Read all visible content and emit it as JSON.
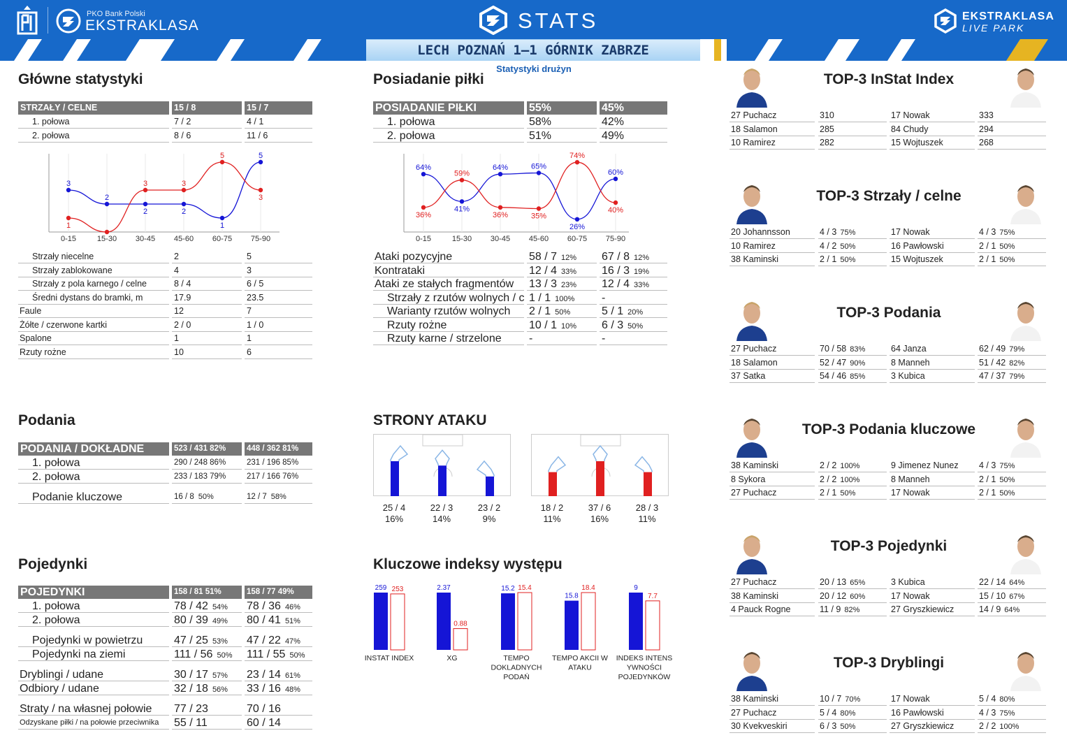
{
  "header": {
    "pko_small": "PKO Bank Polski",
    "ekstraklasa": "EKSTRAKLASA",
    "stats": "STATS",
    "live1": "EKSTRAKLASA",
    "live2": "LIVE PARK"
  },
  "match": "LECH POZNAŃ 1–1 GÓRNIK ZABRZE",
  "subtitle": "Statystyki drużyn",
  "colors": {
    "home": "#1515d6",
    "away": "#e02020",
    "header": "#1769c9",
    "table_header": "#777777"
  },
  "main_stats": {
    "title": "Główne statystyki",
    "header": [
      "STRZAŁY / CELNE",
      "15 / 8",
      "15 / 7"
    ],
    "rows": [
      [
        "1. połowa",
        "7 / 2",
        "4 / 1"
      ],
      [
        "2. połowa",
        "8 / 6",
        "11 / 6"
      ]
    ],
    "rows2": [
      [
        "Strzały niecelne",
        "2",
        "5"
      ],
      [
        "Strzały zablokowane",
        "4",
        "3"
      ],
      [
        "Strzały z pola karnego / celne",
        "8 / 4",
        "6 / 5"
      ],
      [
        "Średni dystans do bramki, m",
        "17.9",
        "23.5"
      ],
      [
        "Faule",
        "12",
        "7"
      ],
      [
        "Żółte / czerwone kartki",
        "2 / 0",
        "1 / 0"
      ],
      [
        "Spalone",
        "1",
        "1"
      ],
      [
        "Rzuty rożne",
        "10",
        "6"
      ]
    ]
  },
  "possession": {
    "title": "Posiadanie piłki",
    "header": [
      "POSIADANIE PIŁKI",
      "55%",
      "45%"
    ],
    "rows": [
      [
        "1. połowa",
        "58%",
        "42%"
      ],
      [
        "2. połowa",
        "51%",
        "49%"
      ]
    ],
    "rows2": [
      [
        "Ataki pozycyjne",
        "58 / 7",
        "12%",
        "67 / 8",
        "12%"
      ],
      [
        "Kontrataki",
        "12 / 4",
        "33%",
        "16 / 3",
        "19%"
      ],
      [
        "Ataki ze stałych fragmentów",
        "13 / 3",
        "23%",
        "12 / 4",
        "33%"
      ],
      [
        "Strzały z rzutów wolnych / celne",
        "1 / 1",
        "100%",
        "-",
        ""
      ],
      [
        "Warianty rzutów wolnych",
        "2 / 1",
        "50%",
        "5 / 1",
        "20%"
      ],
      [
        "Rzuty rożne",
        "10 / 1",
        "10%",
        "6 / 3",
        "50%"
      ],
      [
        "Rzuty karne / strzelone",
        "-",
        "",
        "-",
        ""
      ]
    ]
  },
  "chart_data": [
    {
      "type": "line",
      "categories": [
        "0-15",
        "15-30",
        "30-45",
        "45-60",
        "60-75",
        "75-90"
      ],
      "series": [
        {
          "values": [
            3,
            2,
            2,
            2,
            1,
            5
          ]
        },
        {
          "values": [
            1,
            0,
            3,
            3,
            5,
            3
          ]
        }
      ],
      "data_labels": [
        [
          "3",
          "2",
          "2",
          "2",
          "1",
          "5"
        ],
        [
          "1",
          "",
          "3",
          "3",
          "5",
          "3"
        ]
      ],
      "ylim": [
        0,
        5
      ]
    },
    {
      "type": "line",
      "categories": [
        "0-15",
        "15-30",
        "30-45",
        "45-60",
        "60-75",
        "75-90"
      ],
      "series": [
        {
          "values": [
            64,
            41,
            64,
            65,
            26,
            60
          ]
        },
        {
          "values": [
            36,
            59,
            36,
            35,
            74,
            40
          ]
        }
      ],
      "data_labels": [
        [
          "64%",
          "41%",
          "64%",
          "65%",
          "26%",
          "60%"
        ],
        [
          "36%",
          "59%",
          "36%",
          "35%",
          "74%",
          "40%"
        ]
      ],
      "ylim": [
        20,
        80
      ]
    },
    {
      "type": "bar",
      "categories": [
        "INSTAT INDEX",
        "XG",
        "TEMPO DOKLADNYCH PODAŃ",
        "TEMPO AKCII W ATAKU",
        "INDEKS INTENS YWNOŚCI POJEDYNKÓW"
      ],
      "series": [
        {
          "values": [
            259,
            2.37,
            15.2,
            15.8,
            9
          ]
        },
        {
          "values": [
            253,
            0.88,
            15.4,
            18.4,
            7.7
          ]
        }
      ]
    }
  ],
  "passes": {
    "title": "Podania",
    "header": [
      "PODANIA / DOKŁADNE",
      "523 / 431 82%",
      "448 / 362 81%"
    ],
    "rows": [
      [
        "1. połowa",
        "290 / 248 86%",
        "231 / 196 85%"
      ],
      [
        "2. połowa",
        "233 / 183 79%",
        "217 / 166 76%"
      ]
    ],
    "key": [
      "Podanie kluczowe",
      "16 / 8",
      "50%",
      "12 / 7",
      "58%"
    ]
  },
  "attack": {
    "title": "STRONY ATAKU",
    "home": [
      {
        "v": "25 / 4",
        "p": "16%"
      },
      {
        "v": "22 / 3",
        "p": "14%"
      },
      {
        "v": "23 / 2",
        "p": "9%"
      }
    ],
    "away": [
      {
        "v": "18 / 2",
        "p": "11%"
      },
      {
        "v": "37 / 6",
        "p": "16%"
      },
      {
        "v": "28 / 3",
        "p": "11%"
      }
    ]
  },
  "duels": {
    "title": "Pojedynki",
    "header": [
      "POJEDYNKI",
      "158 / 81 51%",
      "158 / 77 49%"
    ],
    "rows": [
      [
        "1. połowa",
        "78 / 42",
        "54%",
        "78 / 36",
        "46%"
      ],
      [
        "2. połowa",
        "80 / 39",
        "49%",
        "80 / 41",
        "51%"
      ]
    ],
    "rows2": [
      [
        "Pojedynki w powietrzu",
        "47 / 25",
        "53%",
        "47 / 22",
        "47%"
      ],
      [
        "Pojedynki na ziemi",
        "111 / 56",
        "50%",
        "111 / 55",
        "50%"
      ]
    ],
    "rows3": [
      [
        "Dryblingi / udane",
        "30 / 17",
        "57%",
        "23 / 14",
        "61%"
      ],
      [
        "Odbiory / udane",
        "32 / 18",
        "56%",
        "33 / 16",
        "48%"
      ]
    ],
    "rows4": [
      [
        "Straty / na własnej połowie",
        "77 / 23",
        "",
        "70 / 16",
        ""
      ],
      [
        "Odzyskane piłki / na połowie przeciwnika",
        "55 / 11",
        "",
        "60 / 14",
        ""
      ]
    ]
  },
  "kpi": {
    "title": "Kluczowe indeksy występu",
    "labels_home": [
      "259",
      "2.37",
      "15.2",
      "15.8",
      "9"
    ],
    "labels_away": [
      "253",
      "0.88",
      "15.4",
      "18.4",
      "7.7"
    ],
    "cats": [
      "INSTAT INDEX",
      "XG",
      "TEMPO\nDOKLADNYCH\nPODAŃ",
      "TEMPO AKCII W\nATAKU",
      "INDEKS INTENS\nYWNOŚCI\nPOJEDYNKÓW"
    ]
  },
  "tops": [
    {
      "title": "TOP-3 InStat Index",
      "rows": [
        [
          "27 Puchacz",
          "310",
          "",
          "17 Nowak",
          "333",
          ""
        ],
        [
          "18 Salamon",
          "285",
          "",
          "84 Chudy",
          "294",
          ""
        ],
        [
          "10 Ramirez",
          "282",
          "",
          "15 Wojtuszek",
          "268",
          ""
        ]
      ]
    },
    {
      "title": "TOP-3 Strzały / celne",
      "rows": [
        [
          "20 Johannsson",
          "4 / 3",
          "75%",
          "17 Nowak",
          "4 / 3",
          "75%"
        ],
        [
          "10 Ramirez",
          "4 / 2",
          "50%",
          "16 Pawłowski",
          "2 / 1",
          "50%"
        ],
        [
          "38 Kaminski",
          "2 / 1",
          "50%",
          "15 Wojtuszek",
          "2 / 1",
          "50%"
        ]
      ]
    },
    {
      "title": "TOP-3 Podania",
      "rows": [
        [
          "27 Puchacz",
          "70 / 58",
          "83%",
          "64 Janza",
          "62 / 49",
          "79%"
        ],
        [
          "18 Salamon",
          "52 / 47",
          "90%",
          "8   Manneh",
          "51 / 42",
          "82%"
        ],
        [
          "37 Satka",
          "54 / 46",
          "85%",
          "3   Kubica",
          "47 / 37",
          "79%"
        ]
      ]
    },
    {
      "title": "TOP-3 Podania kluczowe",
      "rows": [
        [
          "38 Kaminski",
          "2 / 2",
          "100%",
          "9   Jimenez Nunez",
          "4 / 3",
          "75%"
        ],
        [
          "8   Sykora",
          "2 / 2",
          "100%",
          "8   Manneh",
          "2 / 1",
          "50%"
        ],
        [
          "27 Puchacz",
          "2 / 1",
          "50%",
          "17 Nowak",
          "2 / 1",
          "50%"
        ]
      ]
    },
    {
      "title": "TOP-3 Pojedynki",
      "rows": [
        [
          "27 Puchacz",
          "20 / 13",
          "65%",
          "3   Kubica",
          "22 / 14",
          "64%"
        ],
        [
          "38 Kaminski",
          "20 / 12",
          "60%",
          "17 Nowak",
          "15 / 10",
          "67%"
        ],
        [
          "4   Pauck Rogne",
          "11 / 9",
          "82%",
          "27 Gryszkiewicz",
          "14 / 9",
          "64%"
        ]
      ]
    },
    {
      "title": "TOP-3 Dryblingi",
      "rows": [
        [
          "38 Kaminski",
          "10 / 7",
          "70%",
          "17 Nowak",
          "5 / 4",
          "80%"
        ],
        [
          "27 Puchacz",
          "5 / 4",
          "80%",
          "16 Pawłowski",
          "4 / 3",
          "75%"
        ],
        [
          "30 Kvekveskiri",
          "6 / 3",
          "50%",
          "27 Gryszkiewicz",
          "2 / 2",
          "100%"
        ]
      ]
    }
  ]
}
